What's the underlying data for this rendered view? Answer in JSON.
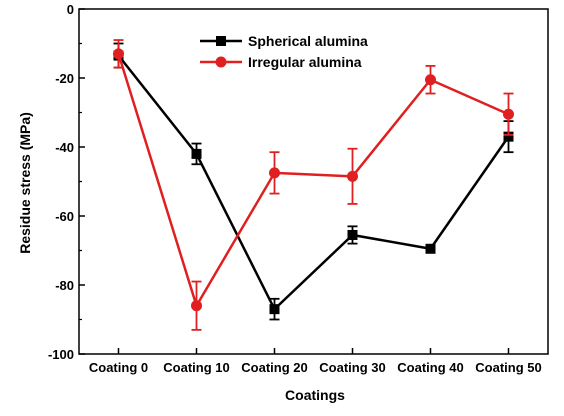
{
  "chart_data": {
    "type": "line",
    "title": "",
    "xlabel": "Coatings",
    "ylabel": "Residue stress (MPa)",
    "categories": [
      "Coating 0",
      "Coating 10",
      "Coating 20",
      "Coating 30",
      "Coating 40",
      "Coating 50"
    ],
    "ylim": [
      -100,
      0
    ],
    "yticks": [
      0,
      -20,
      -40,
      -60,
      -80,
      -100
    ],
    "grid": false,
    "legend_position": "top-right",
    "series": [
      {
        "name": "Spherical alumina",
        "color": "#000000",
        "marker": "square",
        "values": [
          -13.5,
          -42,
          -87,
          -65.5,
          -69.5,
          -37
        ],
        "errors": [
          3.5,
          3,
          3,
          2.5,
          1,
          4.5
        ]
      },
      {
        "name": "Irregular alumina",
        "color": "#e02020",
        "marker": "circle",
        "values": [
          -13,
          -86,
          -47.5,
          -48.5,
          -20.5,
          -30.5
        ],
        "errors": [
          4,
          7,
          6,
          8,
          4,
          6
        ]
      }
    ]
  }
}
